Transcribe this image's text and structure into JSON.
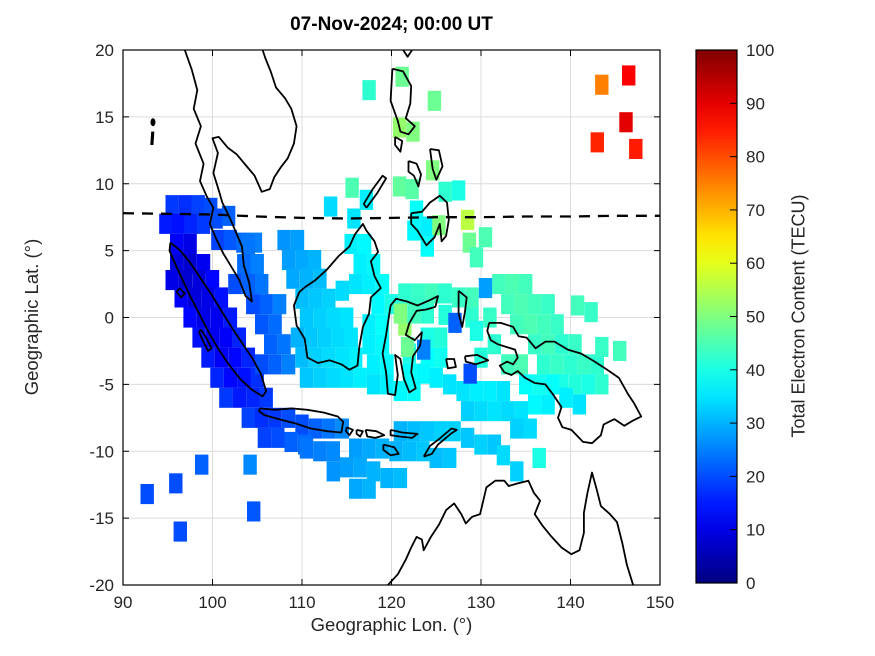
{
  "figure": {
    "background": "#ffffff"
  },
  "chart_data": {
    "type": "scatter",
    "marker": "square",
    "title": "07-Nov-2024; 00:00 UT",
    "xlabel": "Geographic Lon. (°)",
    "ylabel": "Geographic Lat. (°)",
    "xlim": [
      90,
      150
    ],
    "ylim": [
      -20,
      20
    ],
    "xticks": [
      90,
      100,
      110,
      120,
      130,
      140,
      150
    ],
    "yticks": [
      -20,
      -15,
      -10,
      -5,
      0,
      5,
      10,
      15,
      20
    ],
    "grid": true,
    "grid_color": "#dcdcdc",
    "colormap": "jet",
    "colorbar": {
      "label": "Total Electron Content (TECU)",
      "min": 0,
      "max": 100,
      "ticks": [
        0,
        10,
        20,
        30,
        40,
        50,
        60,
        70,
        80,
        90,
        100
      ]
    },
    "marker_size_deg": [
      1.5,
      1.5
    ],
    "dip_equator": [
      [
        90,
        7.8
      ],
      [
        95,
        7.75
      ],
      [
        100,
        7.7
      ],
      [
        105,
        7.55
      ],
      [
        110,
        7.45
      ],
      [
        115,
        7.4
      ],
      [
        120,
        7.45
      ],
      [
        125,
        7.5
      ],
      [
        130,
        7.5
      ],
      [
        135,
        7.55
      ],
      [
        140,
        7.55
      ],
      [
        145,
        7.6
      ],
      [
        150,
        7.6
      ]
    ],
    "points": [
      [
        95.5,
        8.4,
        18
      ],
      [
        97,
        8.4,
        17
      ],
      [
        98.4,
        8.4,
        19
      ],
      [
        99.8,
        8.2,
        20
      ],
      [
        94.8,
        7,
        15
      ],
      [
        96.2,
        7,
        14
      ],
      [
        97.6,
        7,
        16
      ],
      [
        99,
        7,
        18
      ],
      [
        100.4,
        7.4,
        20
      ],
      [
        101.8,
        7.6,
        22
      ],
      [
        100.6,
        5.8,
        19
      ],
      [
        102,
        5.8,
        21
      ],
      [
        103.4,
        5.6,
        23
      ],
      [
        104.8,
        5.6,
        25
      ],
      [
        96,
        5.5,
        12
      ],
      [
        97.5,
        5.5,
        10
      ],
      [
        96,
        4,
        9
      ],
      [
        97.5,
        4,
        8
      ],
      [
        99,
        4,
        11
      ],
      [
        95.5,
        2.8,
        10
      ],
      [
        97,
        2.8,
        8
      ],
      [
        98.5,
        2.8,
        9
      ],
      [
        100,
        2.8,
        13
      ],
      [
        96.5,
        1.5,
        12
      ],
      [
        98,
        1.5,
        9
      ],
      [
        99.5,
        1.5,
        10
      ],
      [
        101,
        1.5,
        14
      ],
      [
        97.5,
        0,
        13
      ],
      [
        99,
        0,
        10
      ],
      [
        100.5,
        0,
        11
      ],
      [
        102,
        0,
        15
      ],
      [
        98.5,
        -1.5,
        14
      ],
      [
        100,
        -1.5,
        11
      ],
      [
        101.5,
        -1.5,
        12
      ],
      [
        103,
        -1.5,
        16
      ],
      [
        99.5,
        -3,
        15
      ],
      [
        101,
        -3,
        12
      ],
      [
        102.5,
        -3,
        13
      ],
      [
        104,
        -3,
        16
      ],
      [
        100.5,
        -4.5,
        16
      ],
      [
        102,
        -4.5,
        13
      ],
      [
        103.5,
        -4.5,
        14
      ],
      [
        105,
        -4.5,
        17
      ],
      [
        101.5,
        -6,
        18
      ],
      [
        103,
        -6,
        15
      ],
      [
        104.5,
        -6,
        16
      ],
      [
        106,
        -6,
        18
      ],
      [
        104,
        -7.5,
        19
      ],
      [
        105.5,
        -7.5,
        17
      ],
      [
        107,
        -7.5,
        18
      ],
      [
        108.5,
        -7.5,
        20
      ],
      [
        110,
        -8,
        20
      ],
      [
        111.5,
        -8.3,
        22
      ],
      [
        113,
        -8.3,
        24
      ],
      [
        114.5,
        -8.3,
        26
      ],
      [
        105.8,
        -9,
        19
      ],
      [
        107.3,
        -9,
        20
      ],
      [
        108.8,
        -9.3,
        22
      ],
      [
        110.3,
        -9.5,
        23
      ],
      [
        104,
        5.5,
        24
      ],
      [
        103.5,
        4,
        23
      ],
      [
        105,
        4,
        25
      ],
      [
        102.5,
        2.5,
        20
      ],
      [
        104,
        2.5,
        22
      ],
      [
        105.5,
        2.5,
        24
      ],
      [
        104.5,
        1,
        20
      ],
      [
        106,
        1,
        22
      ],
      [
        107.5,
        1,
        25
      ],
      [
        105.5,
        -0.5,
        21
      ],
      [
        107,
        -0.5,
        23
      ],
      [
        106.5,
        -2,
        22
      ],
      [
        108,
        -2,
        24
      ],
      [
        105.5,
        -3.5,
        20
      ],
      [
        107,
        -3.5,
        22
      ],
      [
        108.5,
        -3.5,
        25
      ],
      [
        108,
        5.8,
        27
      ],
      [
        109.5,
        5.8,
        28
      ],
      [
        108.5,
        4.3,
        28
      ],
      [
        110,
        4.3,
        29
      ],
      [
        111.4,
        4.3,
        30
      ],
      [
        109,
        2.9,
        29
      ],
      [
        110.5,
        2.9,
        30
      ],
      [
        112,
        2.9,
        31
      ],
      [
        110,
        1.4,
        31
      ],
      [
        111.5,
        1.4,
        32
      ],
      [
        113,
        1.4,
        33
      ],
      [
        114.5,
        2,
        34
      ],
      [
        116,
        2.5,
        35
      ],
      [
        110.5,
        0,
        32
      ],
      [
        112,
        0,
        33
      ],
      [
        113.5,
        0,
        34
      ],
      [
        115,
        0,
        35
      ],
      [
        109.5,
        -1.5,
        30
      ],
      [
        111,
        -1.5,
        32
      ],
      [
        112.5,
        -1.5,
        33
      ],
      [
        114,
        -1.5,
        34
      ],
      [
        115.5,
        -1.5,
        35
      ],
      [
        110,
        -3,
        31
      ],
      [
        111.5,
        -3,
        33
      ],
      [
        113,
        -3,
        34
      ],
      [
        114.5,
        -3,
        35
      ],
      [
        116,
        -3,
        36
      ],
      [
        110.5,
        -4.5,
        32
      ],
      [
        112,
        -4.5,
        33
      ],
      [
        113.5,
        -4.5,
        34
      ],
      [
        115,
        -4.5,
        35
      ],
      [
        116.5,
        -4.5,
        36
      ],
      [
        115.5,
        5.5,
        36
      ],
      [
        117,
        5.5,
        37
      ],
      [
        116.5,
        4,
        36
      ],
      [
        118,
        4,
        37
      ],
      [
        117.5,
        2.5,
        36
      ],
      [
        119,
        2.5,
        38
      ],
      [
        118.5,
        1,
        37
      ],
      [
        120,
        1,
        40
      ],
      [
        117.5,
        -0.5,
        36
      ],
      [
        119,
        -0.5,
        38
      ],
      [
        117.5,
        -2,
        36
      ],
      [
        119,
        -2,
        37
      ],
      [
        118,
        -3.5,
        36
      ],
      [
        119.5,
        -3.5,
        37
      ],
      [
        118,
        -5,
        35
      ],
      [
        119.5,
        -5,
        36
      ],
      [
        121,
        -5.5,
        37
      ],
      [
        122.5,
        -5.5,
        38
      ],
      [
        121.5,
        -0.6,
        52
      ],
      [
        122,
        -2.7,
        40
      ],
      [
        121.8,
        -2.2,
        48
      ],
      [
        121,
        0.3,
        50
      ],
      [
        122.5,
        0.3,
        44
      ],
      [
        124,
        0.3,
        42
      ],
      [
        124,
        -1.5,
        40
      ],
      [
        125.5,
        -1.5,
        41
      ],
      [
        124,
        -3,
        38
      ],
      [
        125.5,
        -3,
        39
      ],
      [
        122,
        -4.2,
        38
      ],
      [
        123.5,
        -4.2,
        37
      ],
      [
        125,
        -4.5,
        36
      ],
      [
        126.5,
        -5,
        35
      ],
      [
        121.5,
        1.8,
        42
      ],
      [
        123,
        1.8,
        43
      ],
      [
        124.5,
        1.8,
        44
      ],
      [
        126,
        1.8,
        42
      ],
      [
        126,
        0.2,
        41
      ],
      [
        127.5,
        1.5,
        43
      ],
      [
        129,
        1.5,
        44
      ],
      [
        129,
        0,
        42
      ],
      [
        121.2,
        18,
        48
      ],
      [
        117.5,
        17,
        42
      ],
      [
        124.8,
        16.2,
        48
      ],
      [
        120.9,
        14.2,
        52
      ],
      [
        122.4,
        13.9,
        50
      ],
      [
        120.9,
        9.8,
        47
      ],
      [
        122.3,
        9.6,
        46
      ],
      [
        124.6,
        11,
        50
      ],
      [
        126,
        9.4,
        42
      ],
      [
        128.5,
        7.3,
        56
      ],
      [
        128.7,
        5.6,
        48
      ],
      [
        122.8,
        8,
        38
      ],
      [
        124,
        6.8,
        36
      ],
      [
        122.5,
        6.5,
        37
      ],
      [
        124,
        5.3,
        38
      ],
      [
        125.3,
        6.9,
        50
      ],
      [
        127.5,
        9.5,
        40
      ],
      [
        129.5,
        4.5,
        44
      ],
      [
        130.5,
        6,
        45
      ],
      [
        113.2,
        8.3,
        34
      ],
      [
        115.6,
        9.7,
        45
      ],
      [
        115.8,
        7.4,
        35
      ],
      [
        117.2,
        8.8,
        36
      ],
      [
        132,
        2.5,
        44
      ],
      [
        133.5,
        2.5,
        45
      ],
      [
        135,
        2.5,
        44
      ],
      [
        133,
        1,
        44
      ],
      [
        134.5,
        1,
        45
      ],
      [
        136,
        1,
        44
      ],
      [
        137.5,
        1,
        43
      ],
      [
        134,
        -0.5,
        44
      ],
      [
        135.5,
        -0.5,
        45
      ],
      [
        137,
        -0.5,
        44
      ],
      [
        138.5,
        -0.5,
        43
      ],
      [
        136,
        -2,
        43
      ],
      [
        137.5,
        -2,
        44
      ],
      [
        139,
        -2,
        42
      ],
      [
        140.5,
        -2,
        43
      ],
      [
        137,
        -3.5,
        42
      ],
      [
        138.5,
        -3.5,
        43
      ],
      [
        140,
        -3.5,
        42
      ],
      [
        141.5,
        -3.5,
        43
      ],
      [
        143,
        -3.5,
        42
      ],
      [
        139,
        -5,
        40
      ],
      [
        140.5,
        -5,
        41
      ],
      [
        142,
        -5,
        40
      ],
      [
        143.5,
        -5,
        42
      ],
      [
        140.8,
        0.9,
        44
      ],
      [
        142.3,
        0.4,
        43
      ],
      [
        143.5,
        -2.2,
        43
      ],
      [
        145.5,
        -2.5,
        44
      ],
      [
        131,
        0,
        43
      ],
      [
        129.5,
        -1,
        40
      ],
      [
        131.5,
        -2,
        42
      ],
      [
        130,
        -3,
        41
      ],
      [
        133,
        -3.5,
        44
      ],
      [
        134.5,
        -3.5,
        45
      ],
      [
        128,
        -5.5,
        35
      ],
      [
        129.5,
        -5.5,
        36
      ],
      [
        131,
        -5.5,
        36
      ],
      [
        132.5,
        -5.5,
        35
      ],
      [
        128.5,
        -7,
        33
      ],
      [
        130,
        -7,
        34
      ],
      [
        131.5,
        -7,
        35
      ],
      [
        133,
        -7,
        34
      ],
      [
        134.5,
        -7,
        35
      ],
      [
        136,
        -6.5,
        37
      ],
      [
        137.5,
        -6.5,
        36
      ],
      [
        135,
        -5,
        38
      ],
      [
        136.5,
        -5,
        39
      ],
      [
        138,
        -5,
        38
      ],
      [
        139.5,
        -6,
        36
      ],
      [
        141,
        -6.5,
        35
      ],
      [
        134,
        -8.3,
        33
      ],
      [
        135.5,
        -8.3,
        34
      ],
      [
        121,
        -8.5,
        30
      ],
      [
        122.5,
        -8.5,
        31
      ],
      [
        124,
        -8.5,
        32
      ],
      [
        125.5,
        -8.5,
        33
      ],
      [
        127,
        -8.5,
        33
      ],
      [
        128.5,
        -9,
        32
      ],
      [
        130,
        -9.5,
        33
      ],
      [
        131.5,
        -9.5,
        32
      ],
      [
        120.5,
        -10,
        30
      ],
      [
        122,
        -10,
        31
      ],
      [
        123.5,
        -10,
        32
      ],
      [
        125,
        -10.5,
        31
      ],
      [
        126.5,
        -10.5,
        32
      ],
      [
        116,
        -9.8,
        28
      ],
      [
        117.5,
        -9.8,
        29
      ],
      [
        119,
        -9.8,
        30
      ],
      [
        113.5,
        -10,
        26
      ],
      [
        112,
        -10,
        25
      ],
      [
        110.5,
        -9.8,
        24
      ],
      [
        115,
        -11.2,
        28
      ],
      [
        116.5,
        -11.2,
        29
      ],
      [
        118,
        -11.5,
        30
      ],
      [
        119.5,
        -12,
        30
      ],
      [
        121,
        -12,
        31
      ],
      [
        113.5,
        -11.5,
        27
      ],
      [
        116,
        -12.8,
        29
      ],
      [
        117.5,
        -12.8,
        30
      ],
      [
        132.5,
        -10.3,
        34
      ],
      [
        134,
        -11.5,
        33
      ],
      [
        136.5,
        -10.5,
        40
      ],
      [
        98.8,
        -11,
        22
      ],
      [
        95.9,
        -12.4,
        20
      ],
      [
        92.7,
        -13.2,
        20
      ],
      [
        104.2,
        -11,
        26
      ],
      [
        104.6,
        -14.5,
        21
      ],
      [
        96.4,
        -16,
        20
      ],
      [
        127.1,
        -0.4,
        22
      ],
      [
        123.6,
        -2.4,
        25
      ],
      [
        128.8,
        -4.2,
        20
      ],
      [
        130.5,
        2.2,
        28
      ],
      [
        143.5,
        17.4,
        75
      ],
      [
        146.5,
        18.1,
        88
      ],
      [
        146.2,
        14.6,
        90
      ],
      [
        143,
        13.1,
        84
      ],
      [
        147.3,
        12.6,
        85
      ]
    ]
  }
}
